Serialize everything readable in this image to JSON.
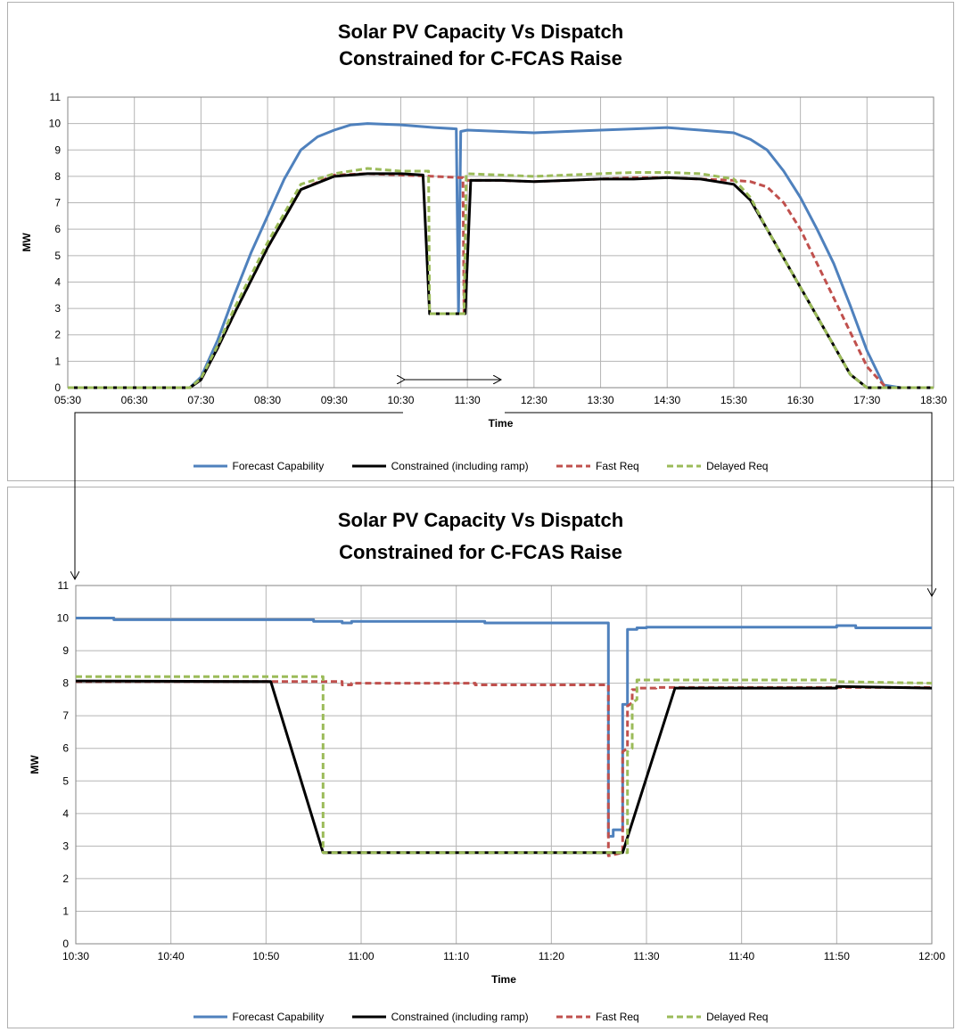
{
  "chart_data": [
    {
      "type": "line",
      "title_line1": "Solar PV Capacity Vs Dispatch",
      "title_line2": "Constrained for C-FCAS Raise",
      "xlabel": "Time",
      "ylabel": "MW",
      "xlim": [
        "05:30",
        "18:30"
      ],
      "ylim": [
        0,
        11
      ],
      "grid": true,
      "legend_position": "bottom",
      "x_ticks": [
        "05:30",
        "06:30",
        "07:30",
        "08:30",
        "09:30",
        "10:30",
        "11:30",
        "12:30",
        "13:30",
        "14:30",
        "15:30",
        "16:30",
        "17:30",
        "18:30"
      ],
      "y_ticks": [
        0,
        1,
        2,
        3,
        4,
        5,
        6,
        7,
        8,
        9,
        10,
        11
      ],
      "series": [
        {
          "name": "Forecast Capability",
          "color": "#4f81bd",
          "dash": false,
          "x": [
            "05:30",
            "07:20",
            "07:30",
            "07:45",
            "08:00",
            "08:15",
            "08:30",
            "08:45",
            "09:00",
            "09:15",
            "09:30",
            "09:45",
            "10:00",
            "10:30",
            "11:00",
            "11:20",
            "11:22",
            "11:24",
            "11:30",
            "12:00",
            "12:30",
            "13:00",
            "13:30",
            "14:00",
            "14:30",
            "14:45",
            "15:00",
            "15:30",
            "15:45",
            "16:00",
            "16:15",
            "16:30",
            "16:45",
            "17:00",
            "17:15",
            "17:30",
            "17:45",
            "18:00",
            "18:30"
          ],
          "y": [
            0,
            0,
            0.4,
            1.8,
            3.5,
            5.1,
            6.5,
            7.9,
            9.0,
            9.5,
            9.75,
            9.95,
            10.0,
            9.95,
            9.85,
            9.8,
            2.8,
            9.7,
            9.75,
            9.7,
            9.65,
            9.7,
            9.75,
            9.8,
            9.85,
            9.8,
            9.75,
            9.65,
            9.4,
            9.0,
            8.2,
            7.2,
            6.0,
            4.7,
            3.1,
            1.4,
            0.1,
            0,
            0
          ]
        },
        {
          "name": "Constrained (including ramp)",
          "color": "#000000",
          "dash": false,
          "x": [
            "05:30",
            "07:20",
            "07:30",
            "07:45",
            "08:00",
            "08:30",
            "09:00",
            "09:30",
            "10:00",
            "10:30",
            "10:50",
            "10:56",
            "11:26",
            "11:28",
            "11:33",
            "12:00",
            "12:30",
            "13:00",
            "13:30",
            "14:00",
            "14:30",
            "15:00",
            "15:30",
            "15:45",
            "16:00",
            "16:15",
            "16:30",
            "16:45",
            "17:00",
            "17:15",
            "17:30",
            "17:40",
            "18:30"
          ],
          "y": [
            0,
            0,
            0.3,
            1.5,
            2.8,
            5.3,
            7.5,
            8.0,
            8.1,
            8.1,
            8.05,
            2.8,
            2.8,
            2.8,
            7.85,
            7.85,
            7.8,
            7.85,
            7.9,
            7.9,
            7.95,
            7.9,
            7.7,
            7.1,
            6.0,
            4.9,
            3.8,
            2.7,
            1.6,
            0.5,
            0,
            0,
            0
          ]
        },
        {
          "name": "Fast Req",
          "color": "#c0504d",
          "dash": true,
          "x": [
            "05:30",
            "07:20",
            "07:30",
            "07:45",
            "08:00",
            "08:30",
            "09:00",
            "09:30",
            "10:00",
            "10:30",
            "11:00",
            "11:26",
            "11:27",
            "11:29",
            "12:00",
            "12:30",
            "13:00",
            "13:30",
            "14:00",
            "14:30",
            "15:00",
            "15:30",
            "15:45",
            "16:00",
            "16:15",
            "16:30",
            "16:45",
            "17:00",
            "17:15",
            "17:30",
            "17:45",
            "17:50",
            "18:30"
          ],
          "y": [
            0,
            0,
            0.3,
            1.5,
            2.8,
            5.3,
            7.5,
            8.05,
            8.1,
            8.05,
            8.0,
            7.95,
            2.8,
            7.85,
            7.85,
            7.8,
            7.85,
            7.9,
            7.95,
            7.95,
            7.9,
            7.85,
            7.8,
            7.6,
            7.0,
            6.0,
            4.7,
            3.4,
            2.1,
            0.8,
            0.1,
            0,
            0
          ]
        },
        {
          "name": "Delayed Req",
          "color": "#9bbb59",
          "dash": true,
          "x": [
            "05:30",
            "07:20",
            "07:30",
            "07:45",
            "08:00",
            "08:30",
            "09:00",
            "09:30",
            "10:00",
            "10:30",
            "10:55",
            "10:56",
            "11:27",
            "11:29",
            "12:00",
            "12:30",
            "13:00",
            "13:30",
            "14:00",
            "14:30",
            "15:00",
            "15:30",
            "15:45",
            "16:00",
            "16:15",
            "16:30",
            "16:45",
            "17:00",
            "17:15",
            "17:30",
            "17:40",
            "18:30"
          ],
          "y": [
            0,
            0,
            0.35,
            1.6,
            3.0,
            5.5,
            7.7,
            8.1,
            8.3,
            8.2,
            8.2,
            2.8,
            2.8,
            8.1,
            8.05,
            8.0,
            8.05,
            8.1,
            8.15,
            8.15,
            8.1,
            7.9,
            7.2,
            6.0,
            4.9,
            3.8,
            2.7,
            1.6,
            0.5,
            0,
            0,
            0
          ]
        }
      ]
    },
    {
      "type": "line",
      "title_line1": "Solar PV Capacity Vs Dispatch",
      "title_line2": "Constrained for C-FCAS Raise",
      "xlabel": "Time",
      "ylabel": "MW",
      "xlim": [
        "10:30",
        "12:00"
      ],
      "ylim": [
        0,
        11
      ],
      "grid": true,
      "legend_position": "bottom",
      "x_ticks": [
        "10:30",
        "10:40",
        "10:50",
        "11:00",
        "11:10",
        "11:20",
        "11:30",
        "11:40",
        "11:50",
        "12:00"
      ],
      "y_ticks": [
        0,
        1,
        2,
        3,
        4,
        5,
        6,
        7,
        8,
        9,
        10,
        11
      ],
      "series": [
        {
          "name": "Forecast Capability",
          "color": "#4f81bd",
          "dash": false,
          "x": [
            "10:30",
            "10:34",
            "10:34",
            "10:55",
            "10:55",
            "10:58",
            "10:58",
            "10:59",
            "10:59",
            "11:13",
            "11:13",
            "11:26",
            "11:26",
            "11:26.5",
            "11:26.5",
            "11:27.5",
            "11:27.5",
            "11:28",
            "11:28",
            "11:29",
            "11:29",
            "11:30",
            "11:30",
            "11:50",
            "11:50",
            "11:52",
            "11:52",
            "12:00"
          ],
          "y": [
            10.0,
            10.0,
            9.95,
            9.95,
            9.9,
            9.9,
            9.85,
            9.85,
            9.9,
            9.9,
            9.85,
            9.85,
            3.3,
            3.3,
            3.5,
            3.5,
            7.35,
            7.35,
            9.65,
            9.65,
            9.7,
            9.7,
            9.72,
            9.72,
            9.77,
            9.77,
            9.7,
            9.7
          ]
        },
        {
          "name": "Constrained (including ramp)",
          "color": "#000000",
          "dash": false,
          "x": [
            "10:30",
            "10:50.5",
            "10:56",
            "11:27.5",
            "11:33",
            "11:50",
            "11:50",
            "12:00"
          ],
          "y": [
            8.07,
            8.05,
            2.8,
            2.8,
            7.85,
            7.85,
            7.9,
            7.85
          ]
        },
        {
          "name": "Fast Req",
          "color": "#c0504d",
          "dash": true,
          "x": [
            "10:30",
            "10:58",
            "10:58",
            "10:59",
            "10:59",
            "11:12",
            "11:12",
            "11:26",
            "11:26",
            "11:27.5",
            "11:27.5",
            "11:28",
            "11:28",
            "11:28.5",
            "11:28.5",
            "11:29",
            "11:29",
            "11:31",
            "11:31",
            "12:00"
          ],
          "y": [
            8.05,
            8.05,
            7.95,
            7.95,
            8.0,
            8.0,
            7.95,
            7.95,
            2.7,
            2.8,
            5.9,
            6.0,
            7.3,
            7.4,
            7.8,
            7.8,
            7.85,
            7.85,
            7.87,
            7.87
          ]
        },
        {
          "name": "Delayed Req",
          "color": "#9bbb59",
          "dash": true,
          "x": [
            "10:30",
            "10:56",
            "10:56",
            "11:28",
            "11:28",
            "11:28.5",
            "11:28.5",
            "11:29",
            "11:29",
            "11:50",
            "11:50",
            "12:00"
          ],
          "y": [
            8.2,
            8.2,
            2.8,
            2.8,
            5.9,
            6.0,
            7.4,
            7.5,
            8.1,
            8.1,
            8.05,
            8.0
          ]
        }
      ]
    }
  ]
}
